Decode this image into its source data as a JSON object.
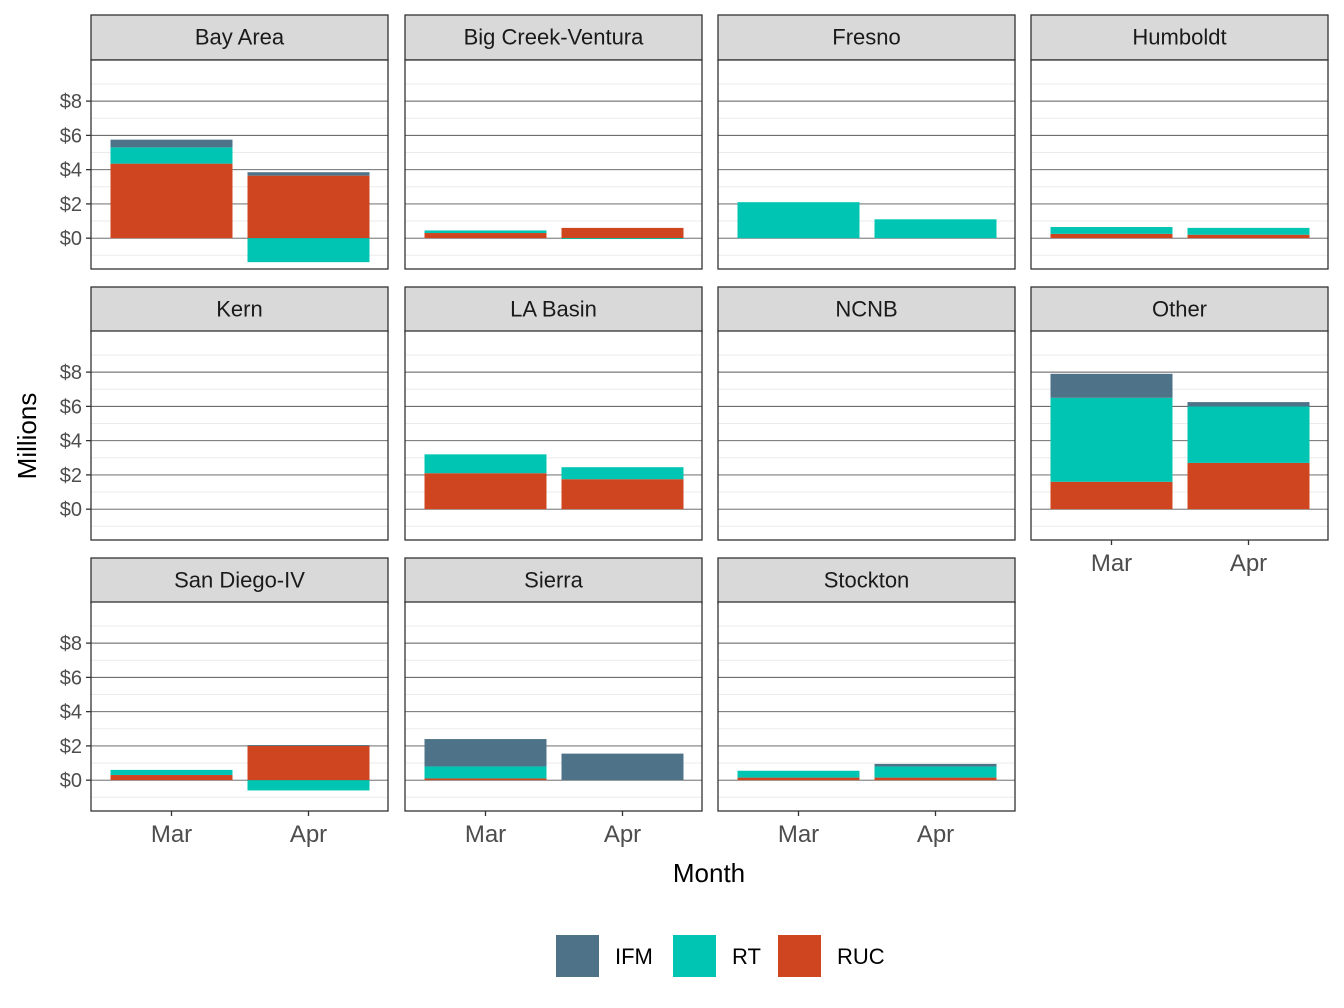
{
  "chart_data": {
    "type": "bar",
    "layout": "facet-grid stacked bar",
    "xlabel": "Month",
    "ylabel": "Millions",
    "categories": [
      "Mar",
      "Apr"
    ],
    "y_ticks": [
      0,
      2,
      4,
      6,
      8
    ],
    "y_tick_labels": [
      "$0",
      "$2",
      "$4",
      "$6",
      "$8"
    ],
    "ylim": [
      -1.8,
      10.4
    ],
    "legend": {
      "position": "bottom",
      "items": [
        {
          "key": "IFM",
          "label": "IFM",
          "color": "#4e7389"
        },
        {
          "key": "RT",
          "label": "RT",
          "color": "#00c5b2"
        },
        {
          "key": "RUC",
          "label": "RUC",
          "color": "#cf4520"
        }
      ]
    },
    "panels": [
      {
        "name": "Bay Area",
        "values": {
          "RUC": [
            4.35,
            3.65
          ],
          "RT": [
            0.95,
            -1.4
          ],
          "IFM": [
            0.45,
            0.2
          ]
        }
      },
      {
        "name": "Big Creek-Ventura",
        "values": {
          "RUC": [
            0.3,
            0.6
          ],
          "RT": [
            0.15,
            -0.05
          ],
          "IFM": [
            0,
            0
          ]
        }
      },
      {
        "name": "Fresno",
        "values": {
          "RUC": [
            0,
            0
          ],
          "RT": [
            2.1,
            1.1
          ],
          "IFM": [
            0,
            0
          ]
        }
      },
      {
        "name": "Humboldt",
        "values": {
          "RUC": [
            0.25,
            0.2
          ],
          "RT": [
            0.4,
            0.4
          ],
          "IFM": [
            0,
            0
          ]
        }
      },
      {
        "name": "Kern",
        "values": {
          "RUC": [
            0,
            0
          ],
          "RT": [
            0,
            0
          ],
          "IFM": [
            0,
            0
          ]
        }
      },
      {
        "name": "LA Basin",
        "values": {
          "RUC": [
            2.1,
            1.75
          ],
          "RT": [
            1.1,
            0.7
          ],
          "IFM": [
            0,
            0
          ]
        }
      },
      {
        "name": "NCNB",
        "values": {
          "RUC": [
            0,
            0
          ],
          "RT": [
            0,
            0
          ],
          "IFM": [
            0,
            0
          ]
        }
      },
      {
        "name": "Other",
        "values": {
          "RUC": [
            1.6,
            2.7
          ],
          "RT": [
            4.9,
            3.3
          ],
          "IFM": [
            1.4,
            0.25
          ]
        }
      },
      {
        "name": "San Diego-IV",
        "values": {
          "RUC": [
            0.3,
            2.0
          ],
          "RT": [
            0.3,
            -0.6
          ],
          "IFM": [
            0,
            0.05
          ]
        }
      },
      {
        "name": "Sierra",
        "values": {
          "RUC": [
            0.1,
            0
          ],
          "RT": [
            0.7,
            0
          ],
          "IFM": [
            1.6,
            1.55
          ]
        }
      },
      {
        "name": "Stockton",
        "values": {
          "RUC": [
            0.15,
            0.15
          ],
          "RT": [
            0.4,
            0.65
          ],
          "IFM": [
            0,
            0.15
          ]
        }
      }
    ]
  }
}
